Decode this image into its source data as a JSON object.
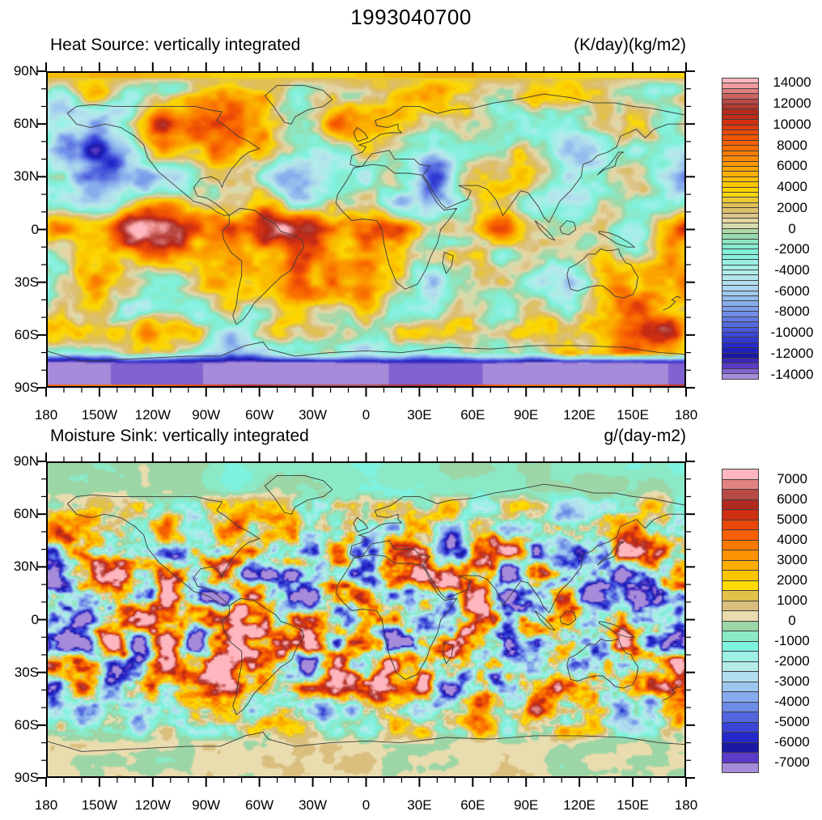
{
  "main_title": "1993040700",
  "palette_stops_neg_to_pos": [
    "#A78BDB",
    "#5B3BC8",
    "#1A18A4",
    "#2427CA",
    "#3A45D6",
    "#5366DE",
    "#6E8BE6",
    "#86AAEC",
    "#9CC6EE",
    "#B1DDEE",
    "#B5EBE9",
    "#9EEFE6",
    "#7EF2DE",
    "#8BE9C6",
    "#9CD6A6",
    "#E9DCAE",
    "#D9BE7E",
    "#E2C14A",
    "#FFDC00",
    "#FAC400",
    "#FBAC00",
    "#FC9200",
    "#FB7800",
    "#F75F00",
    "#E8470A",
    "#CE2E12",
    "#B02A1E",
    "#B84A46",
    "#E28181",
    "#FFB6BE"
  ],
  "frame_color": "#000000",
  "coast_color": "#3c3c3c",
  "chart_data": [
    {
      "type": "heatmap",
      "subtype": "filled-contour-world-map",
      "projection": "cylindrical-equidistant",
      "title": "Heat Source: vertically integrated",
      "units": "(K/day)(kg/m2)",
      "x_axis": {
        "tick_labels": [
          "180",
          "150W",
          "120W",
          "90W",
          "60W",
          "30W",
          "0",
          "30E",
          "60E",
          "90E",
          "120E",
          "150E",
          "180"
        ],
        "lon_range": [
          -180,
          180
        ],
        "major_tick_deg": 30,
        "minor_tick_deg": 10
      },
      "y_axis": {
        "tick_labels": [
          "90N",
          "60N",
          "30N",
          "0",
          "30S",
          "60S",
          "90S"
        ],
        "lat_range": [
          -90,
          90
        ],
        "major_tick_deg": 30,
        "minor_tick_deg": 10
      },
      "contours": {
        "min": -14000,
        "max": 14000,
        "interval": 500,
        "n_fill_boxes": 58
      },
      "colorbar_labels": [
        "14000",
        "12000",
        "10000",
        "8000",
        "6000",
        "4000",
        "2000",
        "0",
        "-2000",
        "-4000",
        "-6000",
        "-8000",
        "-10000",
        "-12000",
        "-14000"
      ],
      "legend_position": "right",
      "grid": false,
      "description": "Large smooth positive (red/pink) anomalies along the equator and 60S storm band, deep negative (purple) band over Antarctica with a thin positive stripe at 90S, gold stripe at 90N; coastlines overlaid."
    },
    {
      "type": "heatmap",
      "subtype": "filled-contour-world-map",
      "projection": "cylindrical-equidistant",
      "title": "Moisture Sink: vertically integrated",
      "units": "g/(day-m2)",
      "x_axis": {
        "tick_labels": [
          "180",
          "150W",
          "120W",
          "90W",
          "60W",
          "30W",
          "0",
          "30E",
          "60E",
          "90E",
          "120E",
          "150E",
          "180"
        ],
        "lon_range": [
          -180,
          180
        ],
        "major_tick_deg": 30,
        "minor_tick_deg": 10
      },
      "y_axis": {
        "tick_labels": [
          "90N",
          "60N",
          "30N",
          "0",
          "30S",
          "60S",
          "90S"
        ],
        "lat_range": [
          -90,
          90
        ],
        "major_tick_deg": 30,
        "minor_tick_deg": 10
      },
      "contours": {
        "min": -7000,
        "max": 7000,
        "interval": 500,
        "n_fill_boxes": 30
      },
      "colorbar_labels": [
        "7000",
        "6000",
        "5000",
        "4000",
        "3000",
        "2000",
        "1000",
        "0",
        "-1000",
        "-2000",
        "-3000",
        "-4000",
        "-5000",
        "-6000",
        "-7000"
      ],
      "legend_position": "right",
      "grid": false,
      "description": "Fine-scale mottled positive/negative cells between 45S and 45N with saturated pink (>7000) and purple (<-7000) blobs; calm pale cyan/tan polar caps; coastlines overlaid."
    }
  ]
}
